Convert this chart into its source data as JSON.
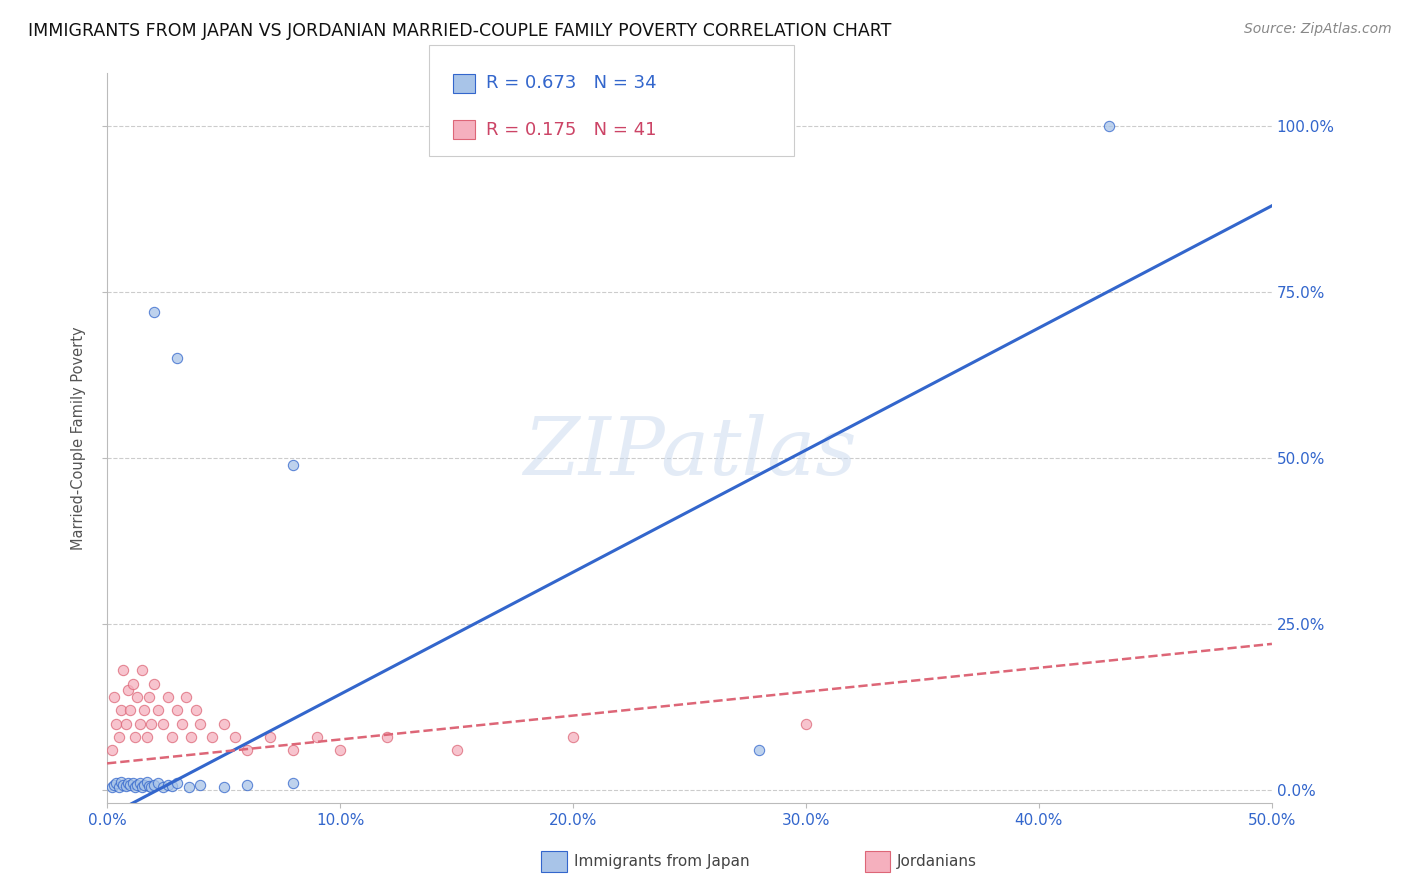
{
  "title": "IMMIGRANTS FROM JAPAN VS JORDANIAN MARRIED-COUPLE FAMILY POVERTY CORRELATION CHART",
  "source": "Source: ZipAtlas.com",
  "ylabel_label": "Married-Couple Family Poverty",
  "xlim": [
    0.0,
    0.5
  ],
  "ylim": [
    -0.02,
    1.08
  ],
  "xticks": [
    0.0,
    0.1,
    0.2,
    0.3,
    0.4,
    0.5
  ],
  "yticks": [
    0.0,
    0.25,
    0.5,
    0.75,
    1.0
  ],
  "xtick_labels": [
    "0.0%",
    "10.0%",
    "20.0%",
    "30.0%",
    "40.0%",
    "50.0%"
  ],
  "ytick_labels": [
    "0.0%",
    "25.0%",
    "50.0%",
    "75.0%",
    "100.0%"
  ],
  "blue_color": "#a8c4e8",
  "pink_color": "#f5b0be",
  "blue_line_color": "#3366cc",
  "pink_line_color": "#dd6677",
  "watermark": "ZIPatlas",
  "legend_r_blue": "R = 0.673",
  "legend_n_blue": "N = 34",
  "legend_r_pink": "R = 0.175",
  "legend_n_pink": "N = 41",
  "blue_points_x": [
    0.002,
    0.003,
    0.004,
    0.005,
    0.006,
    0.007,
    0.008,
    0.009,
    0.01,
    0.011,
    0.012,
    0.013,
    0.014,
    0.015,
    0.016,
    0.017,
    0.018,
    0.019,
    0.02,
    0.022,
    0.024,
    0.026,
    0.028,
    0.03,
    0.035,
    0.04,
    0.05,
    0.06,
    0.08,
    0.02,
    0.03,
    0.08,
    0.28,
    0.43
  ],
  "blue_points_y": [
    0.005,
    0.008,
    0.01,
    0.005,
    0.012,
    0.008,
    0.006,
    0.01,
    0.008,
    0.01,
    0.005,
    0.008,
    0.01,
    0.005,
    0.008,
    0.012,
    0.006,
    0.005,
    0.008,
    0.01,
    0.005,
    0.008,
    0.006,
    0.01,
    0.005,
    0.008,
    0.005,
    0.008,
    0.01,
    0.72,
    0.65,
    0.49,
    0.06,
    1.0
  ],
  "pink_points_x": [
    0.002,
    0.003,
    0.004,
    0.005,
    0.006,
    0.007,
    0.008,
    0.009,
    0.01,
    0.011,
    0.012,
    0.013,
    0.014,
    0.015,
    0.016,
    0.017,
    0.018,
    0.019,
    0.02,
    0.022,
    0.024,
    0.026,
    0.028,
    0.03,
    0.032,
    0.034,
    0.036,
    0.038,
    0.04,
    0.045,
    0.05,
    0.055,
    0.06,
    0.07,
    0.08,
    0.09,
    0.1,
    0.12,
    0.15,
    0.2,
    0.3
  ],
  "pink_points_y": [
    0.06,
    0.14,
    0.1,
    0.08,
    0.12,
    0.18,
    0.1,
    0.15,
    0.12,
    0.16,
    0.08,
    0.14,
    0.1,
    0.18,
    0.12,
    0.08,
    0.14,
    0.1,
    0.16,
    0.12,
    0.1,
    0.14,
    0.08,
    0.12,
    0.1,
    0.14,
    0.08,
    0.12,
    0.1,
    0.08,
    0.1,
    0.08,
    0.06,
    0.08,
    0.06,
    0.08,
    0.06,
    0.08,
    0.06,
    0.08,
    0.1
  ],
  "blue_regression_x0": 0.0,
  "blue_regression_y0": -0.04,
  "blue_regression_x1": 0.5,
  "blue_regression_y1": 0.88,
  "pink_regression_x0": 0.0,
  "pink_regression_y0": 0.04,
  "pink_regression_x1": 0.5,
  "pink_regression_y1": 0.22
}
